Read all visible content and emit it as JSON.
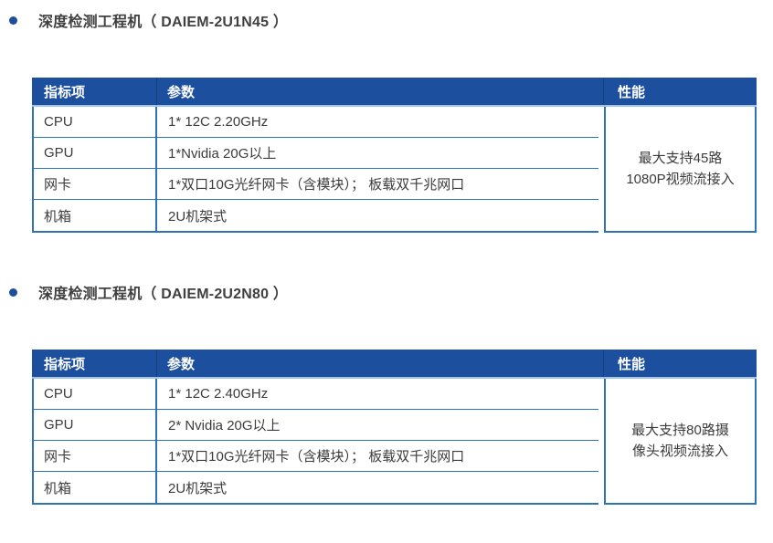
{
  "colors": {
    "header_bg": "#1d4f9f",
    "table_border": "#2e74b5",
    "header_underline": "#9dc3e6",
    "bullet": "#1f4e9e",
    "heading_text": "#404040",
    "body_text": "#3b3b3b",
    "header_text": "#ffffff"
  },
  "sections": [
    {
      "heading": "深度检测工程机（ DAIEM-2U1N45 ）",
      "table": {
        "columns": {
          "item": "指标项",
          "param": "参数",
          "perf": "性能"
        },
        "rows": [
          {
            "item": "CPU",
            "param": "1* 12C 2.20GHz"
          },
          {
            "item": "GPU",
            "param": "1*Nvidia 20G以上"
          },
          {
            "item": "网卡",
            "param": "1*双口10G光纤网卡（含模块）； 板载双千兆网口"
          },
          {
            "item": "机箱",
            "param": "2U机架式"
          }
        ],
        "performance_lines": [
          "最大支持45路",
          "1080P视频流接入"
        ]
      }
    },
    {
      "heading": "深度检测工程机（ DAIEM-2U2N80 ）",
      "table": {
        "columns": {
          "item": "指标项",
          "param": "参数",
          "perf": "性能"
        },
        "rows": [
          {
            "item": "CPU",
            "param": "1* 12C 2.40GHz"
          },
          {
            "item": "GPU",
            "param": "2* Nvidia 20G以上"
          },
          {
            "item": "网卡",
            "param": "1*双口10G光纤网卡（含模块）； 板载双千兆网口"
          },
          {
            "item": "机箱",
            "param": "2U机架式"
          }
        ],
        "performance_lines": [
          "最大支持80路摄",
          "像头视频流接入"
        ]
      }
    }
  ]
}
